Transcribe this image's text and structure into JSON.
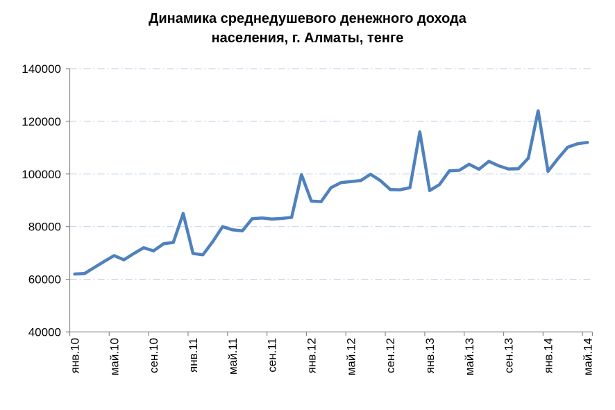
{
  "title": {
    "line1": "Динамика среднедушевого денежного дохода",
    "line2": "населения, г. Алматы, тенге"
  },
  "chart_data": {
    "type": "line",
    "title": "Динамика среднедушевого денежного дохода населения, г. Алматы, тенге",
    "xlabel": "",
    "ylabel": "",
    "ylim": [
      40000,
      140000
    ],
    "yticks": [
      40000,
      60000,
      80000,
      100000,
      120000,
      140000
    ],
    "grid": "horizontal-dash-dot",
    "legend": "none",
    "x_tick_labels_visible": [
      "янв.10",
      "май.10",
      "сен.10",
      "янв.11",
      "май.11",
      "сен.11",
      "янв.12",
      "май.12",
      "сен.12",
      "янв.13",
      "май.13",
      "сен.13",
      "янв.14",
      "май.14"
    ],
    "x_label_step_months": 4,
    "months": [
      "янв.10",
      "фев.10",
      "мар.10",
      "апр.10",
      "май.10",
      "июн.10",
      "июл.10",
      "авг.10",
      "сен.10",
      "окт.10",
      "ноя.10",
      "дек.10",
      "янв.11",
      "фев.11",
      "мар.11",
      "апр.11",
      "май.11",
      "июн.11",
      "июл.11",
      "авг.11",
      "сен.11",
      "окт.11",
      "ноя.11",
      "дек.11",
      "янв.12",
      "фев.12",
      "мар.12",
      "апр.12",
      "май.12",
      "июн.12",
      "июл.12",
      "авг.12",
      "сен.12",
      "окт.12",
      "ноя.12",
      "дек.12",
      "янв.13",
      "фев.13",
      "мар.13",
      "апр.13",
      "май.13",
      "июн.13",
      "июл.13",
      "авг.13",
      "сен.13",
      "окт.13",
      "ноя.13",
      "дек.13",
      "янв.14",
      "фев.14",
      "мар.14",
      "апр.14",
      "май.14"
    ],
    "values": [
      62000,
      62200,
      64500,
      66800,
      69000,
      67400,
      69800,
      72000,
      70800,
      73500,
      74000,
      85000,
      69800,
      69300,
      74300,
      80000,
      78800,
      78400,
      83000,
      83300,
      82900,
      83100,
      83500,
      99800,
      89700,
      89500,
      94800,
      96700,
      97100,
      97500,
      99900,
      97500,
      94100,
      94000,
      94800,
      116000,
      93700,
      96000,
      101200,
      101400,
      103700,
      101800,
      104800,
      103100,
      101900,
      102000,
      106000,
      124000,
      101000,
      105800,
      110200,
      111500,
      112000
    ],
    "colors": {
      "line": "#4F81BD",
      "gridline": "#C6D6EC",
      "axis": "#898989",
      "text": "#000000",
      "background": "#FFFFFF"
    }
  }
}
